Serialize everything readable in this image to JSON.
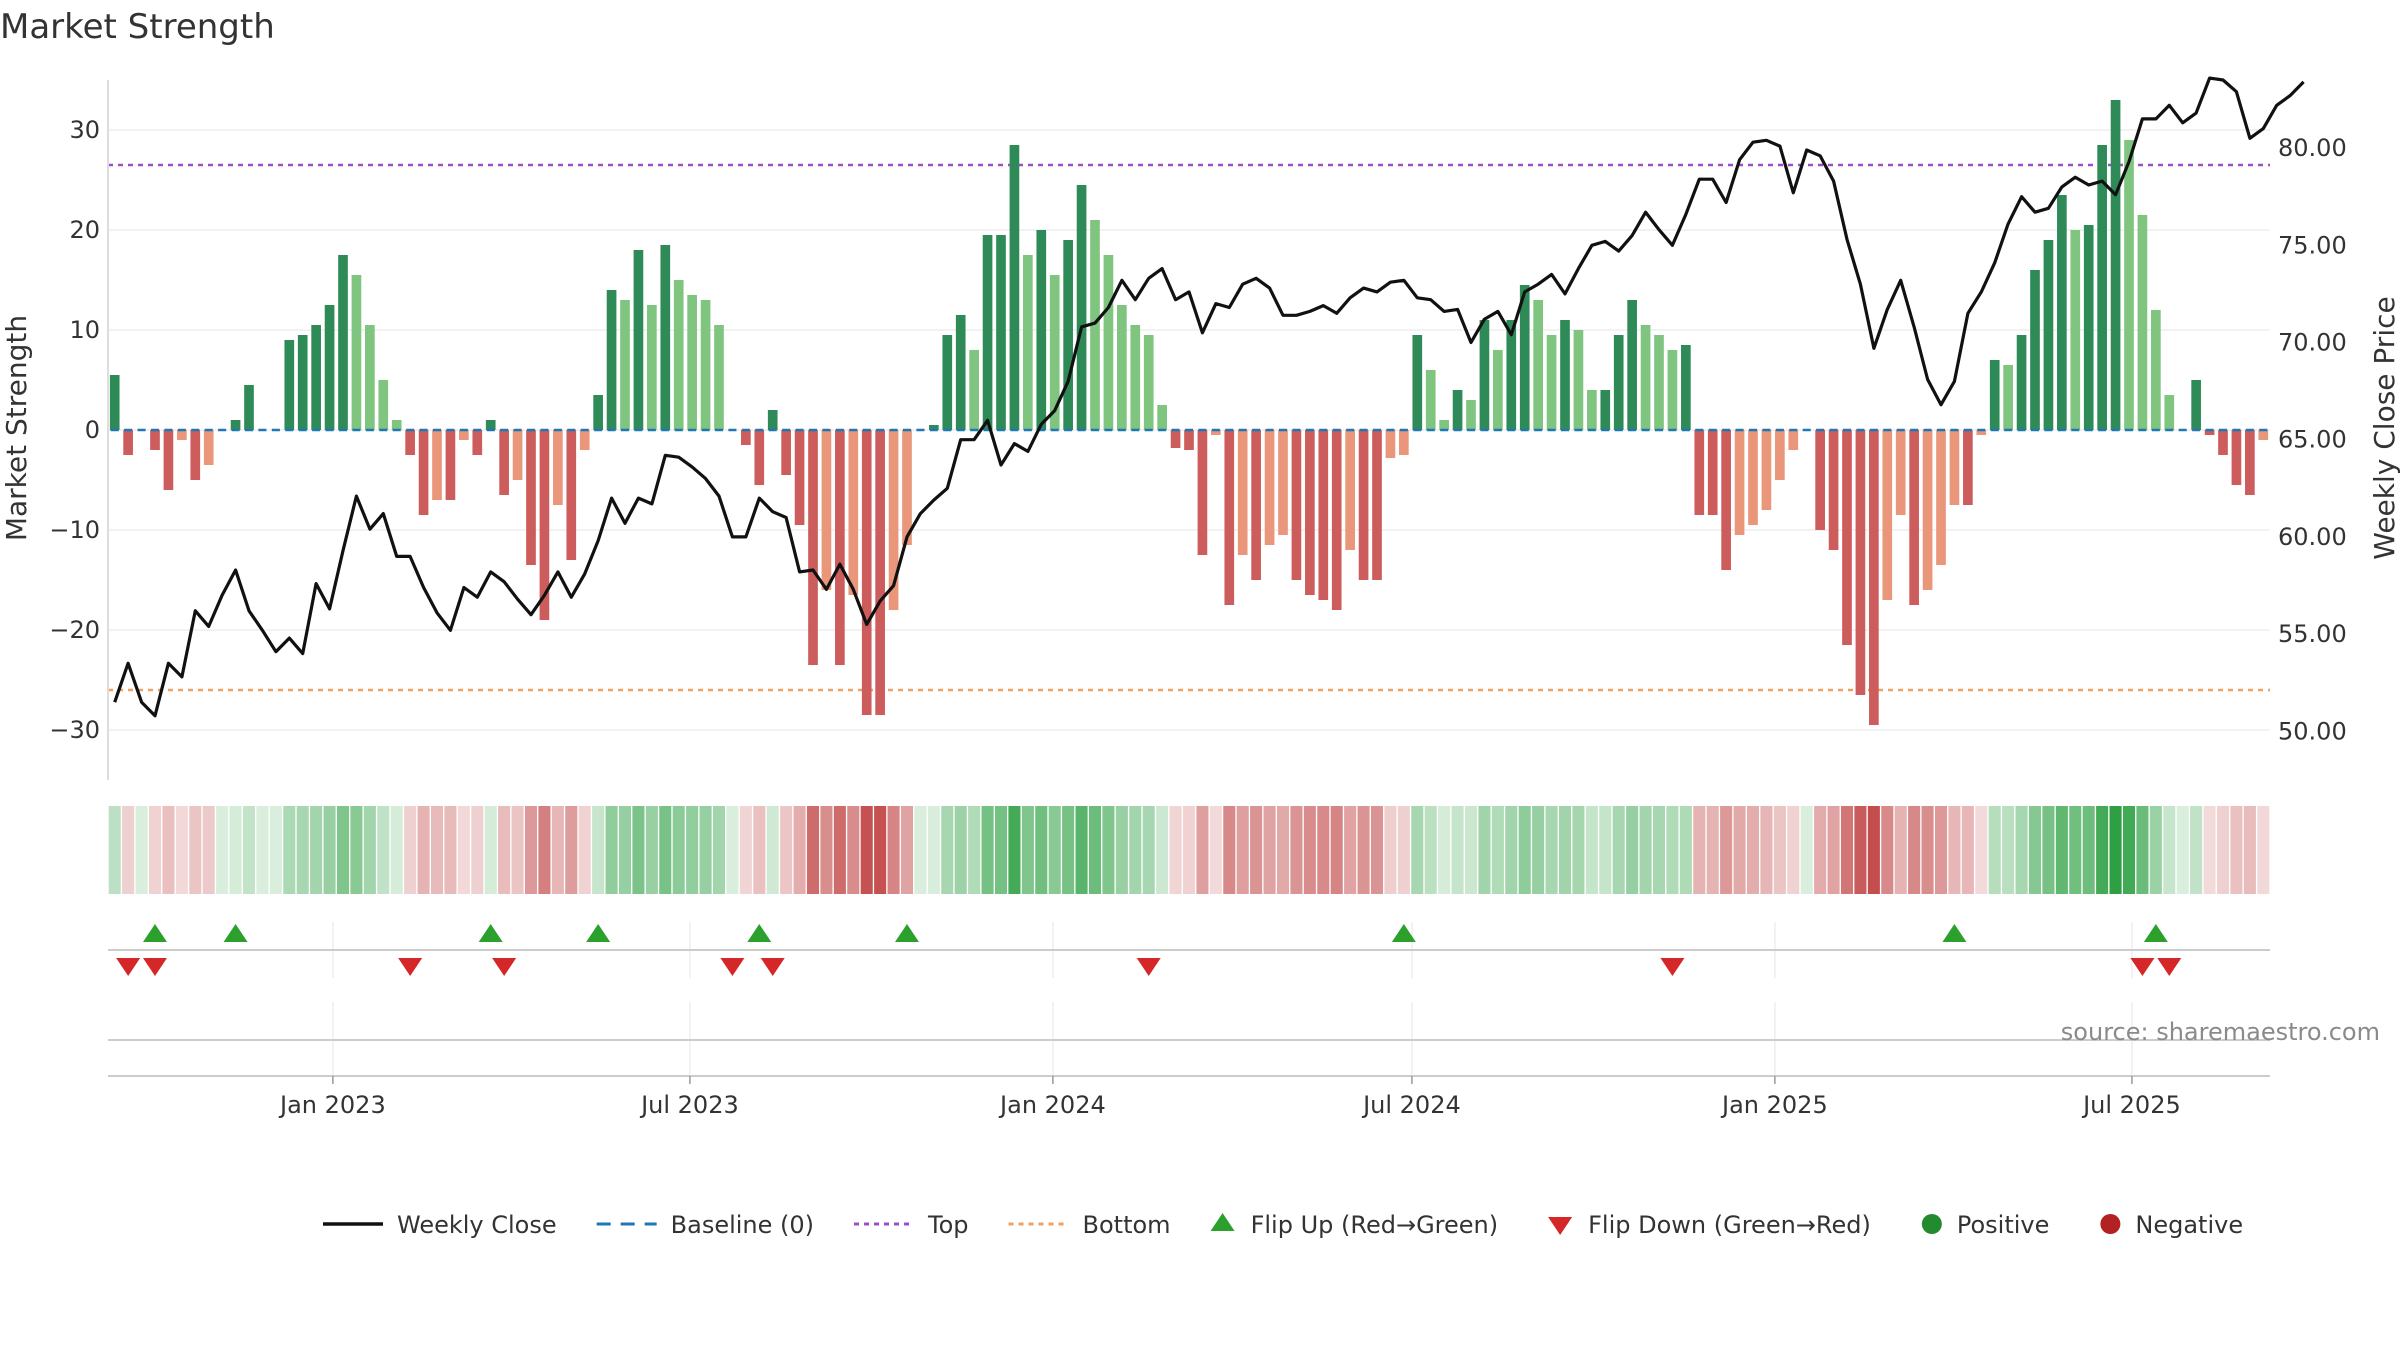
{
  "chart_data": {
    "type": "bar+line",
    "title": "Market Strength",
    "ylabel_left": "Market Strength",
    "ylabel_right": "Weekly Close Price",
    "ylim_left": [
      -35,
      35
    ],
    "ylim_right": [
      47.5,
      83.5
    ],
    "yticks_left": [
      30,
      20,
      10,
      0,
      -10,
      -20,
      -30
    ],
    "ytick_labels_left": [
      "30",
      "20",
      "10",
      "0",
      "−10",
      "−20",
      "−30"
    ],
    "yticks_right": [
      80,
      75,
      70,
      65,
      60,
      55,
      50
    ],
    "ytick_labels_right": [
      "80.00",
      "75.00",
      "70.00",
      "65.00",
      "60.00",
      "55.00",
      "50.00"
    ],
    "x_start": "2022-09-09",
    "x_end": "2025-09-09",
    "x_tick_labels": [
      "Jan 2023",
      "Jul 2023",
      "Jan 2024",
      "Jul 2024",
      "Jan 2025",
      "Jul 2025"
    ],
    "x_tick_dates": [
      "2023-01-01",
      "2023-07-01",
      "2024-01-01",
      "2024-07-01",
      "2025-01-01",
      "2025-07-01"
    ],
    "top_line": 26.5,
    "bottom_line": -26,
    "strength_values": [
      5.5,
      -2.5,
      0,
      -2,
      -6,
      -1,
      -5,
      -3.5,
      0,
      1,
      4.5,
      0,
      0,
      9,
      9.5,
      10.5,
      12.5,
      17.5,
      15.5,
      10.5,
      5,
      1,
      -2.5,
      -8.5,
      -7,
      -7,
      -1,
      -2.5,
      1,
      -6.5,
      -5,
      -13.5,
      -19,
      -7.5,
      -13,
      -2,
      3.5,
      14,
      13,
      18,
      12.5,
      18.5,
      15,
      13.5,
      13,
      10.5,
      0,
      -1.5,
      -5.5,
      2,
      -4.5,
      -9.5,
      -23.5,
      -16,
      -23.5,
      -16.5,
      -28.5,
      -28.5,
      -18,
      -11.5,
      0,
      0.5,
      9.5,
      11.5,
      8,
      19.5,
      19.5,
      28.5,
      17.5,
      20,
      15.5,
      19,
      24.5,
      21,
      17.5,
      12.5,
      10.5,
      9.5,
      2.5,
      -1.8,
      -2,
      -12.5,
      -0.5,
      -17.5,
      -12.5,
      -15,
      -11.5,
      -10.5,
      -15,
      -16.5,
      -17,
      -18,
      -12,
      -15,
      -15,
      -2.8,
      -2.5,
      9.5,
      6,
      1,
      4,
      3,
      11,
      8,
      11,
      14.5,
      13,
      9.5,
      11,
      10,
      4,
      4,
      9.5,
      13,
      10.5,
      9.5,
      8,
      8.5,
      -8.5,
      -8.5,
      -14,
      -10.5,
      -9.5,
      -8,
      -5,
      -2,
      0,
      -10,
      -12,
      -21.5,
      -26.5,
      -29.5,
      -17,
      -8.5,
      -17.5,
      -16,
      -13.5,
      -7.5,
      -7.5,
      -0.5,
      7,
      6.5,
      9.5,
      16,
      19,
      23.5,
      20,
      20.5,
      28.5,
      33,
      29,
      21.5,
      12,
      3.5,
      0,
      5,
      -0.5,
      -2.5,
      -5.5,
      -6.5,
      -1
    ],
    "close_values": [
      51.5,
      53.5,
      51.5,
      50.8,
      53.5,
      52.8,
      56.2,
      55.4,
      57,
      58.3,
      56.2,
      55.2,
      54.1,
      54.8,
      54.0,
      57.6,
      56.3,
      59.3,
      62.1,
      60.4,
      61.2,
      59.0,
      59.0,
      57.4,
      56.1,
      55.2,
      57.4,
      56.9,
      58.2,
      57.7,
      56.8,
      56.0,
      57.0,
      58.2,
      56.9,
      58.1,
      59.8,
      62.0,
      60.7,
      62.0,
      61.7,
      64.2,
      64.1,
      63.6,
      63.0,
      62.1,
      60.0,
      60.0,
      62.0,
      61.3,
      61.0,
      58.2,
      58.3,
      57.3,
      58.6,
      57.3,
      55.5,
      56.7,
      57.5,
      60.0,
      61.2,
      61.9,
      62.5,
      65.0,
      65.0,
      66.0,
      63.7,
      64.8,
      64.4,
      65.8,
      66.5,
      68.0,
      70.8,
      71.0,
      71.8,
      73.2,
      72.2,
      73.3,
      73.8,
      72.2,
      72.6,
      70.5,
      72.0,
      71.8,
      73.0,
      73.3,
      72.8,
      71.4,
      71.4,
      71.6,
      71.9,
      71.5,
      72.3,
      72.8,
      72.6,
      73.1,
      73.2,
      72.3,
      72.2,
      71.6,
      71.7,
      70.0,
      71.2,
      71.6,
      70.4,
      72.6,
      73.0,
      73.5,
      72.5,
      73.8,
      75.0,
      75.2,
      74.7,
      75.5,
      76.7,
      75.8,
      75.0,
      76.6,
      78.4,
      78.4,
      77.2,
      79.4,
      80.3,
      80.4,
      80.1,
      77.7,
      79.9,
      79.6,
      78.3,
      75.3,
      73.0,
      69.7,
      71.7,
      73.2,
      70.8,
      68.1,
      66.8,
      68.0,
      71.5,
      72.6,
      74.1,
      76.1,
      77.5,
      76.7,
      76.9,
      78.0,
      78.5,
      78.1,
      78.3,
      77.6,
      79.3,
      81.5,
      81.5,
      82.2,
      81.3,
      81.8,
      83.6,
      83.5,
      82.9,
      80.5,
      81.0,
      82.2,
      82.7,
      83.4
    ],
    "flip_up_weeks": [
      3,
      9,
      28,
      36,
      48,
      59,
      96,
      137,
      152
    ],
    "flip_down_weeks": [
      1,
      3,
      22,
      29,
      46,
      49,
      77,
      116,
      151,
      153
    ],
    "legend_position": "bottom",
    "legend": [
      {
        "label": "Weekly Close",
        "symbol": "solid-line",
        "color": "#111111"
      },
      {
        "label": "Baseline (0)",
        "symbol": "dash-line",
        "color": "#1f77b4"
      },
      {
        "label": "Top",
        "symbol": "dot-line",
        "color": "#9b4dca"
      },
      {
        "label": "Bottom",
        "symbol": "dot-line",
        "color": "#f0a060"
      },
      {
        "label": "Flip Up (Red→Green)",
        "symbol": "triangle-up",
        "color": "#2ca02c"
      },
      {
        "label": "Flip Down (Green→Red)",
        "symbol": "triangle-down",
        "color": "#d62728"
      },
      {
        "label": "Positive",
        "symbol": "circle",
        "color": "#238b2d"
      },
      {
        "label": "Negative",
        "symbol": "circle",
        "color": "#b22222"
      }
    ],
    "source": "source: sharemaestro.com",
    "colors": {
      "pos_dark": "#2e8b57",
      "pos_light": "#7fc47f",
      "neg_dark": "#cd5c5c",
      "neg_light": "#e9967a",
      "top_line": "#9b4dca",
      "bottom_line": "#f0a060",
      "baseline": "#1f77b4",
      "close_line": "#111111",
      "flip_up": "#2ca02c",
      "flip_down": "#d62728"
    }
  }
}
